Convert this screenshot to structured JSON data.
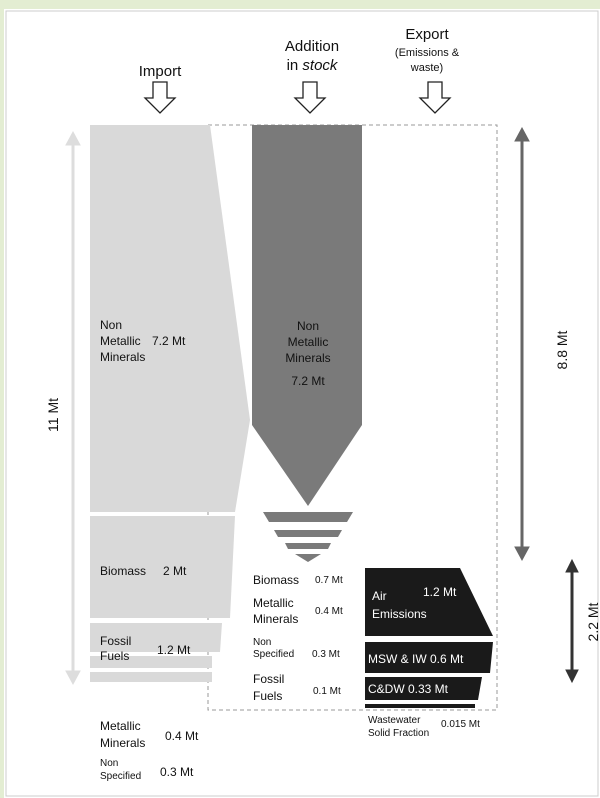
{
  "headers": {
    "import": "Import",
    "addition": {
      "line1": "Addition",
      "in": "in",
      "stock": "stock"
    },
    "export": {
      "line1": "Export",
      "line2": "(Emissions &",
      "line3": "waste)"
    }
  },
  "import": [
    {
      "lines": [
        "Non",
        "Metallic",
        "Minerals"
      ],
      "amount": "7.2 Mt"
    },
    {
      "lines": [
        "Biomass"
      ],
      "amount": "2 Mt"
    },
    {
      "lines": [
        "Fossil",
        "Fuels"
      ],
      "amount": "1.2 Mt"
    },
    {
      "lines": [
        "Metallic",
        "Minerals"
      ],
      "amount": "0.4 Mt"
    },
    {
      "lines": [
        "Non",
        "Specified"
      ],
      "amount": "0.3 Mt"
    }
  ],
  "stock": {
    "main": {
      "lines": [
        "Non",
        "Metallic",
        "Minerals"
      ],
      "amount": "7.2 Mt"
    },
    "items": [
      {
        "lines": [
          "Biomass"
        ],
        "amount": "0.7 Mt"
      },
      {
        "lines": [
          "Metallic",
          "Minerals"
        ],
        "amount": "0.4 Mt"
      },
      {
        "lines": [
          "Non",
          "Specified"
        ],
        "amount": "0.3 Mt"
      },
      {
        "lines": [
          "Fossil",
          "Fuels"
        ],
        "amount": "0.1 Mt"
      }
    ]
  },
  "export": {
    "air": {
      "lines": [
        "Air",
        "Emissions"
      ],
      "amount": "1.2 Mt"
    },
    "msw": "MSW & IW 0.6 Mt",
    "cdw": "C&DW 0.33 Mt",
    "wastewater": {
      "lines": [
        "Wastewater",
        "Solid Fraction"
      ],
      "amount": "0.015 Mt"
    }
  },
  "totals": {
    "import": "11 Mt",
    "stock": "8.8 Mt",
    "export": "2.2 Mt"
  }
}
